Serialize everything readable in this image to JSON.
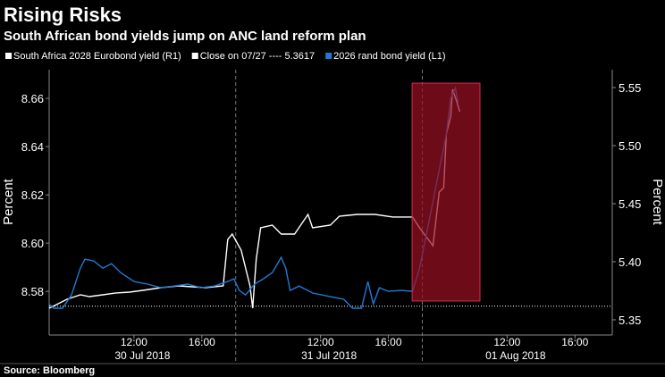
{
  "chart_data": {
    "type": "line",
    "title": "Rising Risks",
    "subtitle": "South African bond yields jump on ANC land reform plan",
    "source": "Source: Bloomberg",
    "ylabel": "Percent",
    "y2label": "Percent",
    "xlim": [
      0,
      33.2
    ],
    "xticks": [
      {
        "value": 5,
        "label": "12:00"
      },
      {
        "value": 9,
        "label": "16:00"
      },
      {
        "value": 16,
        "label": "12:00"
      },
      {
        "value": 20,
        "label": "16:00"
      },
      {
        "value": 27,
        "label": "12:00"
      },
      {
        "value": 31,
        "label": "16:00"
      }
    ],
    "day_labels": [
      {
        "value": 5.5,
        "label": "30 Jul 2018"
      },
      {
        "value": 16.5,
        "label": "31 Jul 2018"
      },
      {
        "value": 27.5,
        "label": "01 Aug 2018"
      }
    ],
    "day_dividers": [
      11,
      22
    ],
    "ylim": [
      8.5619,
      8.6719
    ],
    "yticks": [
      {
        "value": 8.58,
        "label": "8.58"
      },
      {
        "value": 8.6,
        "label": "8.60"
      },
      {
        "value": 8.62,
        "label": "8.62"
      },
      {
        "value": 8.64,
        "label": "8.64"
      },
      {
        "value": 8.66,
        "label": "8.66"
      }
    ],
    "y2lim": [
      5.3369,
      5.5654
    ],
    "y2ticks": [
      {
        "value": 5.35,
        "label": "5.35"
      },
      {
        "value": 5.4,
        "label": "5.40"
      },
      {
        "value": 5.45,
        "label": "5.45"
      },
      {
        "value": 5.5,
        "label": "5.50"
      },
      {
        "value": 5.55,
        "label": "5.55"
      }
    ],
    "reference_line": {
      "name": "Close on 07/27 ---- 5.3617",
      "value": 5.3617,
      "axis": "y2",
      "color": "#ffffff"
    },
    "highlight": {
      "x": [
        21.4,
        25.4
      ],
      "y": [
        8.576,
        8.6663
      ],
      "color": "#9b0f24"
    },
    "series": [
      {
        "name": "South Africa 2028 Eurobond yield (R1)",
        "color": "#ffffff",
        "axis": "y2",
        "x": [
          0,
          0.53,
          1.05,
          1.84,
          2.37,
          3.16,
          3.95,
          4.74,
          5.53,
          6.58,
          7.63,
          9.21,
          10.26,
          10.53,
          10.79,
          11.32,
          11.84,
          12,
          12.21,
          12.47,
          13.16,
          13.68,
          14.47,
          15.26,
          15.53,
          16.58,
          17.11,
          18.16,
          19.21,
          20.26,
          21.42,
          21.84,
          22.63,
          23,
          23.26,
          23.42,
          23.68,
          23.79,
          24.05,
          24.21
        ],
        "values": [
          5.36,
          5.3638,
          5.3677,
          5.3715,
          5.37,
          5.3715,
          5.3731,
          5.3738,
          5.3754,
          5.3777,
          5.3792,
          5.3777,
          5.3792,
          5.4192,
          5.4238,
          5.41,
          5.3792,
          5.36,
          5.4023,
          5.4292,
          5.4315,
          5.4238,
          5.4238,
          5.4408,
          5.4292,
          5.4315,
          5.4392,
          5.4408,
          5.4408,
          5.4385,
          5.4385,
          5.4292,
          5.4138,
          5.46,
          5.4638,
          5.51,
          5.5254,
          5.5485,
          5.5369,
          5.5292
        ]
      },
      {
        "name": "2026 rand bond yield (L1)",
        "color": "#1f7ad6",
        "axis": "y",
        "x": [
          0,
          0.26,
          0.79,
          1.32,
          1.84,
          2.11,
          2.63,
          3.16,
          3.68,
          4.21,
          5,
          5.79,
          6.58,
          7.37,
          8.16,
          8.95,
          9.74,
          10.53,
          10.89,
          11.21,
          11.58,
          12.11,
          12.63,
          13.16,
          13.68,
          13.95,
          14.21,
          14.74,
          15.53,
          16.58,
          17.37,
          17.89,
          18.42,
          18.79,
          19.11,
          19.47,
          20,
          20.79,
          21.42,
          21.84,
          22.37,
          22.89,
          23.42,
          23.68,
          23.95,
          24.11
        ],
        "values": [
          8.5748,
          8.573,
          8.573,
          8.5785,
          8.5896,
          8.5933,
          8.5926,
          8.5896,
          8.5915,
          8.5878,
          8.5841,
          8.583,
          8.5815,
          8.5822,
          8.583,
          8.5815,
          8.5822,
          8.5841,
          8.5852,
          8.5804,
          8.5785,
          8.583,
          8.5852,
          8.5878,
          8.5941,
          8.5896,
          8.5804,
          8.5822,
          8.5793,
          8.5778,
          8.5767,
          8.573,
          8.573,
          8.5841,
          8.5748,
          8.5815,
          8.58,
          8.5804,
          8.58,
          8.5896,
          8.6081,
          8.6267,
          8.6452,
          8.66,
          8.6644,
          8.6581
        ]
      }
    ]
  }
}
